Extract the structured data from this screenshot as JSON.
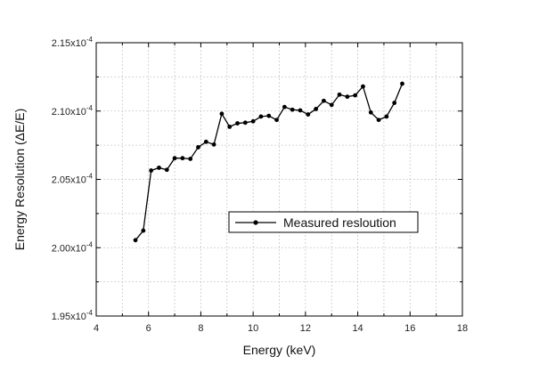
{
  "chart_data": {
    "type": "line",
    "xlabel": "Energy (keV)",
    "ylabel": "Energy Resolution (ΔE/E)",
    "xlim": [
      4,
      18
    ],
    "ylim": [
      0.000195,
      0.000215
    ],
    "x_ticks": [
      4,
      6,
      8,
      10,
      12,
      14,
      16,
      18
    ],
    "y_ticks": [
      0.000195,
      0.0002,
      0.000205,
      0.00021,
      0.000215
    ],
    "x_tick_labels": [
      "4",
      "6",
      "8",
      "10",
      "12",
      "14",
      "16",
      "18"
    ],
    "y_tick_labels": [
      {
        "mantissa": "1.95x10",
        "exp": "-4"
      },
      {
        "mantissa": "2.00x10",
        "exp": "-4"
      },
      {
        "mantissa": "2.05x10",
        "exp": "-4"
      },
      {
        "mantissa": "2.10x10",
        "exp": "-4"
      },
      {
        "mantissa": "2.15x10",
        "exp": "-4"
      }
    ],
    "grid": true,
    "legend_position": "center-right",
    "series": [
      {
        "name": "Measured resloution",
        "color": "#000000",
        "marker": "circle",
        "x": [
          5.5,
          5.8,
          6.1,
          6.4,
          6.7,
          7.0,
          7.3,
          7.6,
          7.9,
          8.2,
          8.5,
          8.8,
          9.1,
          9.4,
          9.7,
          10.0,
          10.3,
          10.6,
          10.9,
          11.2,
          11.5,
          11.8,
          12.1,
          12.4,
          12.7,
          13.0,
          13.3,
          13.6,
          13.9,
          14.2,
          14.5,
          14.8,
          15.1,
          15.4,
          15.7
        ],
        "y": [
          0.00020055,
          0.00020125,
          0.00020565,
          0.00020585,
          0.0002057,
          0.00020655,
          0.00020655,
          0.0002065,
          0.00020735,
          0.00020775,
          0.00020755,
          0.0002098,
          0.00020885,
          0.0002091,
          0.00020915,
          0.00020925,
          0.0002096,
          0.00020965,
          0.00020935,
          0.0002103,
          0.0002101,
          0.00021005,
          0.00020975,
          0.00021015,
          0.00021075,
          0.00021045,
          0.0002112,
          0.00021105,
          0.00021115,
          0.0002118,
          0.0002099,
          0.00020935,
          0.0002096,
          0.0002106,
          0.000212
        ]
      }
    ]
  }
}
